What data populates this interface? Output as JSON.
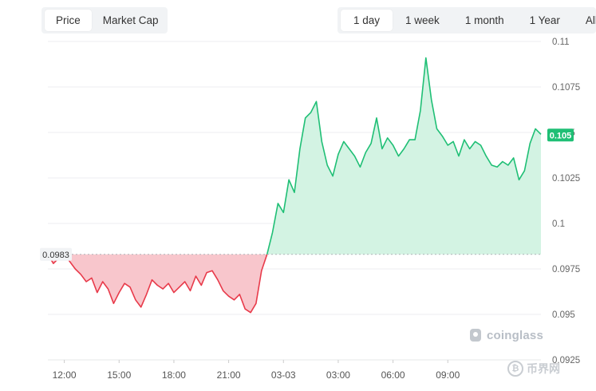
{
  "metric_tabs": [
    {
      "label": "Price",
      "active": true
    },
    {
      "label": "Market Cap",
      "active": false
    }
  ],
  "range_tabs": [
    {
      "label": "1 day",
      "active": true
    },
    {
      "label": "1 week",
      "active": false
    },
    {
      "label": "1 month",
      "active": false
    },
    {
      "label": "1 Year",
      "active": false
    },
    {
      "label": "All",
      "active": false
    }
  ],
  "watermark": {
    "brand": "coinglass",
    "brand_icon": "coinglass-logo-icon",
    "site": "币界网",
    "site_icon": "bitcoin-circle-icon"
  },
  "colors": {
    "up": "#1fbf75",
    "up_fill": "#d3f3e3",
    "down": "#e83a4a",
    "down_fill": "#f8c6cc",
    "current_badge": "#1fbf75",
    "baseline_badge": "#f1f3f5"
  },
  "chart_data": {
    "type": "area",
    "title": "",
    "xlabel": "",
    "ylabel": "",
    "ylim": [
      0.0925,
      0.11
    ],
    "y_ticks": [
      "0.11",
      "0.1075",
      "0.105",
      "0.1025",
      "0.1",
      "0.0975",
      "0.095",
      "0.0925"
    ],
    "x_ticks": [
      {
        "label": "12:00",
        "h": 0
      },
      {
        "label": "15:00",
        "h": 3
      },
      {
        "label": "18:00",
        "h": 6
      },
      {
        "label": "21:00",
        "h": 9
      },
      {
        "label": "03-03",
        "h": 12
      },
      {
        "label": "03:00",
        "h": 15
      },
      {
        "label": "06:00",
        "h": 18
      },
      {
        "label": "09:00",
        "h": 21
      }
    ],
    "baseline": 0.0983,
    "baseline_label": "0.0983",
    "current_label": "0.105",
    "grid": true,
    "series": [
      {
        "points": [
          [
            -0.9,
            0.0983
          ],
          [
            -0.6,
            0.0978
          ],
          [
            -0.3,
            0.0981
          ],
          [
            0.0,
            0.0984
          ],
          [
            0.3,
            0.0979
          ],
          [
            0.6,
            0.0975
          ],
          [
            0.9,
            0.0972
          ],
          [
            1.2,
            0.0968
          ],
          [
            1.5,
            0.097
          ],
          [
            1.8,
            0.0962
          ],
          [
            2.1,
            0.0968
          ],
          [
            2.4,
            0.0964
          ],
          [
            2.7,
            0.0956
          ],
          [
            3.0,
            0.0962
          ],
          [
            3.3,
            0.0967
          ],
          [
            3.6,
            0.0965
          ],
          [
            3.9,
            0.0958
          ],
          [
            4.2,
            0.0954
          ],
          [
            4.5,
            0.0961
          ],
          [
            4.8,
            0.0969
          ],
          [
            5.1,
            0.0966
          ],
          [
            5.4,
            0.0964
          ],
          [
            5.7,
            0.0967
          ],
          [
            6.0,
            0.0962
          ],
          [
            6.3,
            0.0965
          ],
          [
            6.6,
            0.0968
          ],
          [
            6.9,
            0.0963
          ],
          [
            7.2,
            0.0971
          ],
          [
            7.5,
            0.0966
          ],
          [
            7.8,
            0.0973
          ],
          [
            8.1,
            0.0974
          ],
          [
            8.4,
            0.0969
          ],
          [
            8.7,
            0.0963
          ],
          [
            9.0,
            0.096
          ],
          [
            9.3,
            0.0958
          ],
          [
            9.6,
            0.0961
          ],
          [
            9.9,
            0.0953
          ],
          [
            10.2,
            0.0951
          ],
          [
            10.5,
            0.0956
          ],
          [
            10.8,
            0.0974
          ],
          [
            11.1,
            0.0983
          ],
          [
            11.4,
            0.0995
          ],
          [
            11.7,
            0.1011
          ],
          [
            12.0,
            0.1006
          ],
          [
            12.3,
            0.1024
          ],
          [
            12.6,
            0.1017
          ],
          [
            12.9,
            0.1041
          ],
          [
            13.2,
            0.1058
          ],
          [
            13.5,
            0.1061
          ],
          [
            13.8,
            0.1067
          ],
          [
            14.1,
            0.1045
          ],
          [
            14.4,
            0.1032
          ],
          [
            14.7,
            0.1026
          ],
          [
            15.0,
            0.1038
          ],
          [
            15.3,
            0.1045
          ],
          [
            15.6,
            0.1041
          ],
          [
            15.9,
            0.1037
          ],
          [
            16.2,
            0.1031
          ],
          [
            16.5,
            0.1039
          ],
          [
            16.8,
            0.1044
          ],
          [
            17.1,
            0.1058
          ],
          [
            17.4,
            0.1041
          ],
          [
            17.7,
            0.1047
          ],
          [
            18.0,
            0.1043
          ],
          [
            18.3,
            0.1037
          ],
          [
            18.6,
            0.1041
          ],
          [
            18.9,
            0.1046
          ],
          [
            19.2,
            0.1046
          ],
          [
            19.5,
            0.1062
          ],
          [
            19.8,
            0.1091
          ],
          [
            20.1,
            0.1068
          ],
          [
            20.4,
            0.1052
          ],
          [
            20.7,
            0.1048
          ],
          [
            21.0,
            0.1043
          ],
          [
            21.3,
            0.1045
          ],
          [
            21.6,
            0.1037
          ],
          [
            21.9,
            0.1046
          ],
          [
            22.2,
            0.1041
          ],
          [
            22.5,
            0.1045
          ],
          [
            22.8,
            0.1043
          ],
          [
            23.1,
            0.1037
          ],
          [
            23.4,
            0.1032
          ],
          [
            23.7,
            0.1031
          ],
          [
            24.0,
            0.1034
          ],
          [
            24.3,
            0.1032
          ],
          [
            24.6,
            0.1036
          ],
          [
            24.9,
            0.1024
          ],
          [
            25.2,
            0.1029
          ],
          [
            25.5,
            0.1044
          ],
          [
            25.8,
            0.1052
          ],
          [
            26.1,
            0.1049
          ]
        ]
      }
    ]
  }
}
